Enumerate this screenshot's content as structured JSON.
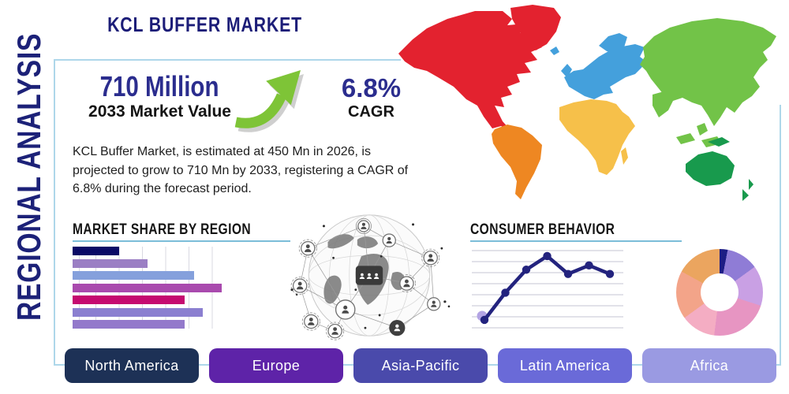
{
  "header": {
    "title": "KCL BUFFER MARKET",
    "side_label": "REGIONAL ANALYSIS"
  },
  "highlights": {
    "market_value": "710 Million",
    "market_value_label": "2033 Market Value",
    "cagr_value": "6.8%",
    "cagr_label": "CAGR",
    "arrow_color": "#7ec437"
  },
  "summary": "KCL Buffer Market, is estimated at 450 Mn in 2026, is projected to grow to 710 Mn by 2033, registering a CAGR of 6.8% during the forecast period.",
  "region_buttons": [
    {
      "label": "North America",
      "color": "#1d3156"
    },
    {
      "label": "Europe",
      "color": "#5e23a8"
    },
    {
      "label": "Asia-Pacific",
      "color": "#4a4aab"
    },
    {
      "label": "Latin America",
      "color": "#6a6ad8"
    },
    {
      "label": "Africa",
      "color": "#9a9ae2"
    }
  ],
  "map": {
    "colors": {
      "north_america": "#e3222f",
      "greenland": "#e3222f",
      "south_america": "#ee8722",
      "europe": "#44a0dc",
      "africa": "#f6c04a",
      "asia": "#72c348",
      "oceania": "#189a4d"
    }
  },
  "chart_data": [
    {
      "type": "bar",
      "title": "MARKET SHARE BY REGION",
      "orientation": "horizontal",
      "categories": [
        "",
        "",
        "",
        "",
        "",
        "",
        ""
      ],
      "values": [
        20,
        32,
        52,
        64,
        48,
        56,
        48
      ],
      "xlim": [
        0,
        67
      ],
      "grid": "vertical, step 10",
      "colors": [
        "#0a0a66",
        "#9b7fc4",
        "#85a0dc",
        "#a94aae",
        "#c50a70",
        "#8b7fd0",
        "#9379cb"
      ]
    },
    {
      "type": "line",
      "title": "CONSUMER BEHAVIOR",
      "x": [
        1,
        2,
        3,
        4,
        5,
        6,
        7
      ],
      "values": [
        13,
        45,
        72,
        88,
        67,
        77,
        67
      ],
      "ylim": [
        0,
        100
      ],
      "grid": "horizontal",
      "line_color": "#23237e",
      "marker": "circle",
      "first_point_halo_color": "#b3a4e4"
    },
    {
      "type": "pie",
      "title": "",
      "donut": true,
      "values": [
        3,
        12,
        15,
        22,
        13,
        18,
        17
      ],
      "colors": [
        "#1d1d85",
        "#8f7cd6",
        "#c9a0e4",
        "#e795c2",
        "#f4adc3",
        "#f3a489",
        "#eba55f"
      ],
      "legend": "none"
    }
  ]
}
